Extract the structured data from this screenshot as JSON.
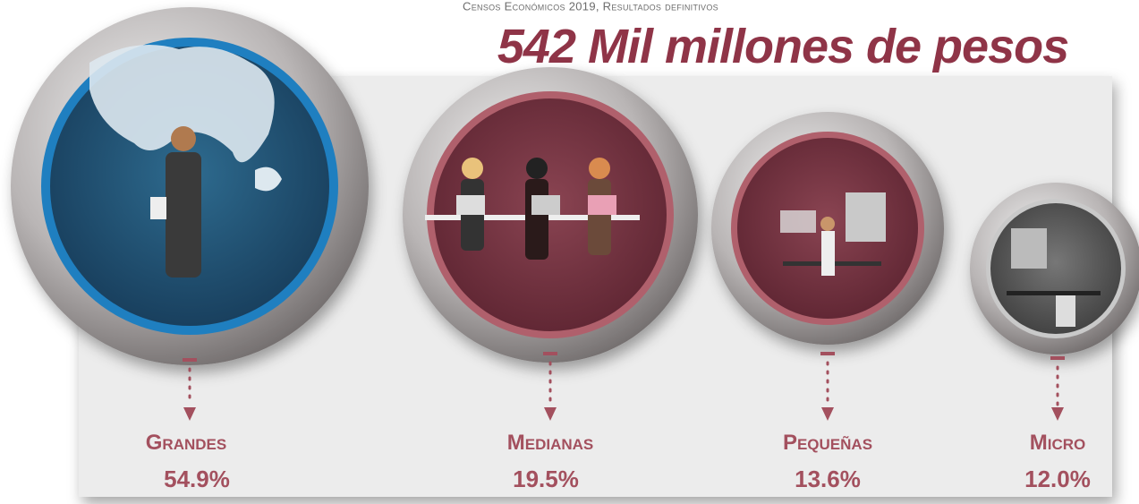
{
  "header": {
    "source": "Censos Económicos 2019, Resultados definitivos",
    "title": "542 Mil millones de pesos"
  },
  "items": [
    {
      "label": "Grandes",
      "share": "54.9%"
    },
    {
      "label": "Medianas",
      "share": "19.5%"
    },
    {
      "label": "Pequeñas",
      "share": "13.6%"
    },
    {
      "label": "Micro",
      "share": "12.0%"
    }
  ]
}
